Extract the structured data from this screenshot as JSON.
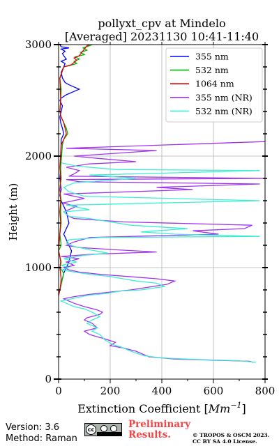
{
  "chart_data": {
    "type": "line",
    "title_line1": "pollyxt_cpv at Mindelo",
    "title_line2": "[Averaged] 20231130 10:41-11:40",
    "xlabel_text": "Extinction Coefficient ",
    "xlabel_unit_main": "Mm",
    "xlabel_unit_exp": "−1",
    "xlabel_close": "]",
    "xlabel_open": "[",
    "ylabel": "Height (m)",
    "xlim": [
      0,
      800
    ],
    "ylim": [
      0,
      3000
    ],
    "xticks": [
      0,
      200,
      400,
      600,
      800
    ],
    "xtick_labels": [
      "0",
      "200",
      "400",
      "600",
      "800"
    ],
    "yticks": [
      0,
      1000,
      2000,
      3000
    ],
    "ytick_labels": [
      "0",
      "1000",
      "2000",
      "3000"
    ],
    "grid": true,
    "legend_position": "top-right",
    "series": [
      {
        "name": "355 nm",
        "color": "#0000ff",
        "points": [
          [
            0,
            750
          ],
          [
            5,
            800
          ],
          [
            10,
            850
          ],
          [
            15,
            900
          ],
          [
            20,
            950
          ],
          [
            30,
            1000
          ],
          [
            40,
            1050
          ],
          [
            45,
            1100
          ],
          [
            50,
            1150
          ],
          [
            40,
            1200
          ],
          [
            30,
            1250
          ],
          [
            20,
            1300
          ],
          [
            30,
            1350
          ],
          [
            40,
            1400
          ],
          [
            35,
            1450
          ],
          [
            30,
            1500
          ],
          [
            20,
            1550
          ],
          [
            10,
            1600
          ],
          [
            5,
            1650
          ],
          [
            10,
            1700
          ],
          [
            5,
            1800
          ],
          [
            8,
            1900
          ],
          [
            10,
            2150
          ],
          [
            20,
            2200
          ],
          [
            15,
            2250
          ],
          [
            8,
            2300
          ],
          [
            5,
            2350
          ],
          [
            10,
            2400
          ],
          [
            15,
            2450
          ],
          [
            5,
            2500
          ],
          [
            10,
            2520
          ],
          [
            30,
            2550
          ],
          [
            60,
            2580
          ],
          [
            80,
            2600
          ],
          [
            60,
            2620
          ],
          [
            40,
            2640
          ],
          [
            25,
            2660
          ],
          [
            15,
            2700
          ],
          [
            10,
            2750
          ],
          [
            20,
            2800
          ],
          [
            25,
            2830
          ],
          [
            10,
            2850
          ],
          [
            30,
            2870
          ],
          [
            20,
            2900
          ],
          [
            15,
            2920
          ],
          [
            25,
            2940
          ],
          [
            10,
            2960
          ],
          [
            40,
            2970
          ],
          [
            10,
            2980
          ],
          [
            5,
            3000
          ]
        ]
      },
      {
        "name": "532 nm",
        "color": "#00b400",
        "points": [
          [
            0,
            750
          ],
          [
            5,
            800
          ],
          [
            10,
            850
          ],
          [
            15,
            900
          ],
          [
            20,
            950
          ],
          [
            5,
            1000
          ],
          [
            10,
            1050
          ],
          [
            5,
            1100
          ],
          [
            0,
            1150
          ],
          [
            10,
            1200
          ],
          [
            5,
            1300
          ],
          [
            10,
            1400
          ],
          [
            8,
            1500
          ],
          [
            10,
            1600
          ],
          [
            5,
            1700
          ],
          [
            10,
            1800
          ],
          [
            8,
            1900
          ],
          [
            15,
            2100
          ],
          [
            20,
            2150
          ],
          [
            35,
            2200
          ],
          [
            30,
            2250
          ],
          [
            20,
            2300
          ],
          [
            10,
            2350
          ],
          [
            5,
            2400
          ],
          [
            8,
            2500
          ],
          [
            10,
            2600
          ],
          [
            5,
            2700
          ],
          [
            20,
            2800
          ],
          [
            40,
            2810
          ],
          [
            70,
            2830
          ],
          [
            60,
            2850
          ],
          [
            80,
            2870
          ],
          [
            65,
            2890
          ],
          [
            100,
            2910
          ],
          [
            85,
            2930
          ],
          [
            110,
            2950
          ],
          [
            95,
            2970
          ],
          [
            120,
            2990
          ],
          [
            130,
            3000
          ]
        ]
      },
      {
        "name": "1064 nm",
        "color": "#dc0000",
        "points": [
          [
            0,
            750
          ],
          [
            5,
            800
          ],
          [
            8,
            850
          ],
          [
            10,
            900
          ],
          [
            5,
            1000
          ],
          [
            8,
            1050
          ],
          [
            5,
            1100
          ],
          [
            0,
            1150
          ],
          [
            5,
            1300
          ],
          [
            8,
            1400
          ],
          [
            5,
            1500
          ],
          [
            8,
            1600
          ],
          [
            5,
            1700
          ],
          [
            8,
            1800
          ],
          [
            5,
            1900
          ],
          [
            10,
            2100
          ],
          [
            20,
            2150
          ],
          [
            30,
            2200
          ],
          [
            25,
            2250
          ],
          [
            20,
            2300
          ],
          [
            10,
            2350
          ],
          [
            5,
            2400
          ],
          [
            8,
            2500
          ],
          [
            5,
            2700
          ],
          [
            20,
            2800
          ],
          [
            50,
            2820
          ],
          [
            60,
            2840
          ],
          [
            70,
            2860
          ],
          [
            60,
            2880
          ],
          [
            80,
            2900
          ],
          [
            90,
            2930
          ],
          [
            100,
            2960
          ],
          [
            110,
            2990
          ],
          [
            120,
            3000
          ]
        ]
      },
      {
        "name": "355 nm (NR)",
        "color": "#a032f0",
        "points": [
          [
            755,
            150
          ],
          [
            740,
            160
          ],
          [
            600,
            170
          ],
          [
            450,
            180
          ],
          [
            350,
            200
          ],
          [
            300,
            250
          ],
          [
            250,
            280
          ],
          [
            200,
            300
          ],
          [
            220,
            330
          ],
          [
            180,
            360
          ],
          [
            150,
            380
          ],
          [
            120,
            400
          ],
          [
            100,
            430
          ],
          [
            150,
            460
          ],
          [
            130,
            500
          ],
          [
            100,
            530
          ],
          [
            110,
            550
          ],
          [
            160,
            580
          ],
          [
            170,
            600
          ],
          [
            150,
            620
          ],
          [
            100,
            650
          ],
          [
            60,
            680
          ],
          [
            40,
            700
          ],
          [
            20,
            720
          ],
          [
            60,
            740
          ],
          [
            120,
            760
          ],
          [
            200,
            780
          ],
          [
            280,
            800
          ],
          [
            420,
            850
          ],
          [
            450,
            880
          ],
          [
            380,
            900
          ],
          [
            270,
            920
          ],
          [
            160,
            940
          ],
          [
            80,
            960
          ],
          [
            40,
            980
          ],
          [
            20,
            1000
          ],
          [
            60,
            1020
          ],
          [
            30,
            1050
          ],
          [
            80,
            1080
          ],
          [
            10,
            1100
          ],
          [
            130,
            1120
          ],
          [
            380,
            1140
          ],
          [
            220,
            1160
          ],
          [
            80,
            1180
          ],
          [
            30,
            1200
          ],
          [
            60,
            1230
          ],
          [
            120,
            1270
          ],
          [
            620,
            1300
          ],
          [
            520,
            1330
          ],
          [
            720,
            1350
          ],
          [
            750,
            1380
          ],
          [
            250,
            1410
          ],
          [
            60,
            1440
          ],
          [
            40,
            1460
          ],
          [
            20,
            1500
          ],
          [
            70,
            1550
          ],
          [
            15,
            1580
          ],
          [
            100,
            1620
          ],
          [
            20,
            1660
          ],
          [
            520,
            1700
          ],
          [
            380,
            1720
          ],
          [
            780,
            1750
          ],
          [
            80,
            1770
          ],
          [
            30,
            1790
          ],
          [
            800,
            1800
          ],
          [
            40,
            1820
          ],
          [
            60,
            1840
          ],
          [
            80,
            1870
          ],
          [
            30,
            1900
          ],
          [
            120,
            1930
          ],
          [
            300,
            1950
          ],
          [
            150,
            1980
          ],
          [
            60,
            2000
          ],
          [
            380,
            2050
          ],
          [
            30,
            2070
          ],
          [
            800,
            2130
          ]
        ]
      },
      {
        "name": "532 nm (NR)",
        "color": "#3ceed2",
        "points": [
          [
            765,
            150
          ],
          [
            700,
            165
          ],
          [
            550,
            175
          ],
          [
            400,
            190
          ],
          [
            330,
            210
          ],
          [
            280,
            250
          ],
          [
            240,
            290
          ],
          [
            210,
            310
          ],
          [
            180,
            350
          ],
          [
            160,
            400
          ],
          [
            130,
            430
          ],
          [
            150,
            460
          ],
          [
            110,
            500
          ],
          [
            130,
            530
          ],
          [
            160,
            560
          ],
          [
            130,
            600
          ],
          [
            100,
            630
          ],
          [
            60,
            650
          ],
          [
            30,
            680
          ],
          [
            10,
            700
          ],
          [
            50,
            720
          ],
          [
            110,
            750
          ],
          [
            190,
            770
          ],
          [
            240,
            790
          ],
          [
            320,
            800
          ],
          [
            410,
            830
          ],
          [
            380,
            860
          ],
          [
            300,
            880
          ],
          [
            250,
            900
          ],
          [
            200,
            920
          ],
          [
            120,
            940
          ],
          [
            60,
            960
          ],
          [
            15,
            980
          ],
          [
            40,
            1000
          ],
          [
            10,
            1020
          ],
          [
            70,
            1050
          ],
          [
            20,
            1080
          ],
          [
            100,
            1110
          ],
          [
            190,
            1130
          ],
          [
            120,
            1160
          ],
          [
            60,
            1190
          ],
          [
            30,
            1220
          ],
          [
            40,
            1250
          ],
          [
            160,
            1270
          ],
          [
            780,
            1280
          ],
          [
            450,
            1300
          ],
          [
            320,
            1320
          ],
          [
            500,
            1350
          ],
          [
            280,
            1380
          ],
          [
            200,
            1410
          ],
          [
            120,
            1440
          ],
          [
            40,
            1460
          ],
          [
            20,
            1500
          ],
          [
            120,
            1520
          ],
          [
            30,
            1560
          ],
          [
            780,
            1600
          ],
          [
            100,
            1640
          ],
          [
            40,
            1680
          ],
          [
            20,
            1720
          ],
          [
            60,
            1760
          ],
          [
            300,
            1800
          ],
          [
            120,
            1830
          ],
          [
            780,
            1870
          ],
          [
            220,
            1880
          ],
          [
            70,
            1910
          ],
          [
            10,
            1940
          ]
        ]
      }
    ]
  },
  "footer": {
    "version": "Version: 3.6",
    "method": "Method: Raman",
    "license_badge_text": "cc",
    "preliminary_line1": "Preliminary",
    "preliminary_line2": "Results.",
    "copyright_line1": "© TROPOS & OSCM 2023.",
    "copyright_line2": "CC BY SA 4.0 License."
  }
}
